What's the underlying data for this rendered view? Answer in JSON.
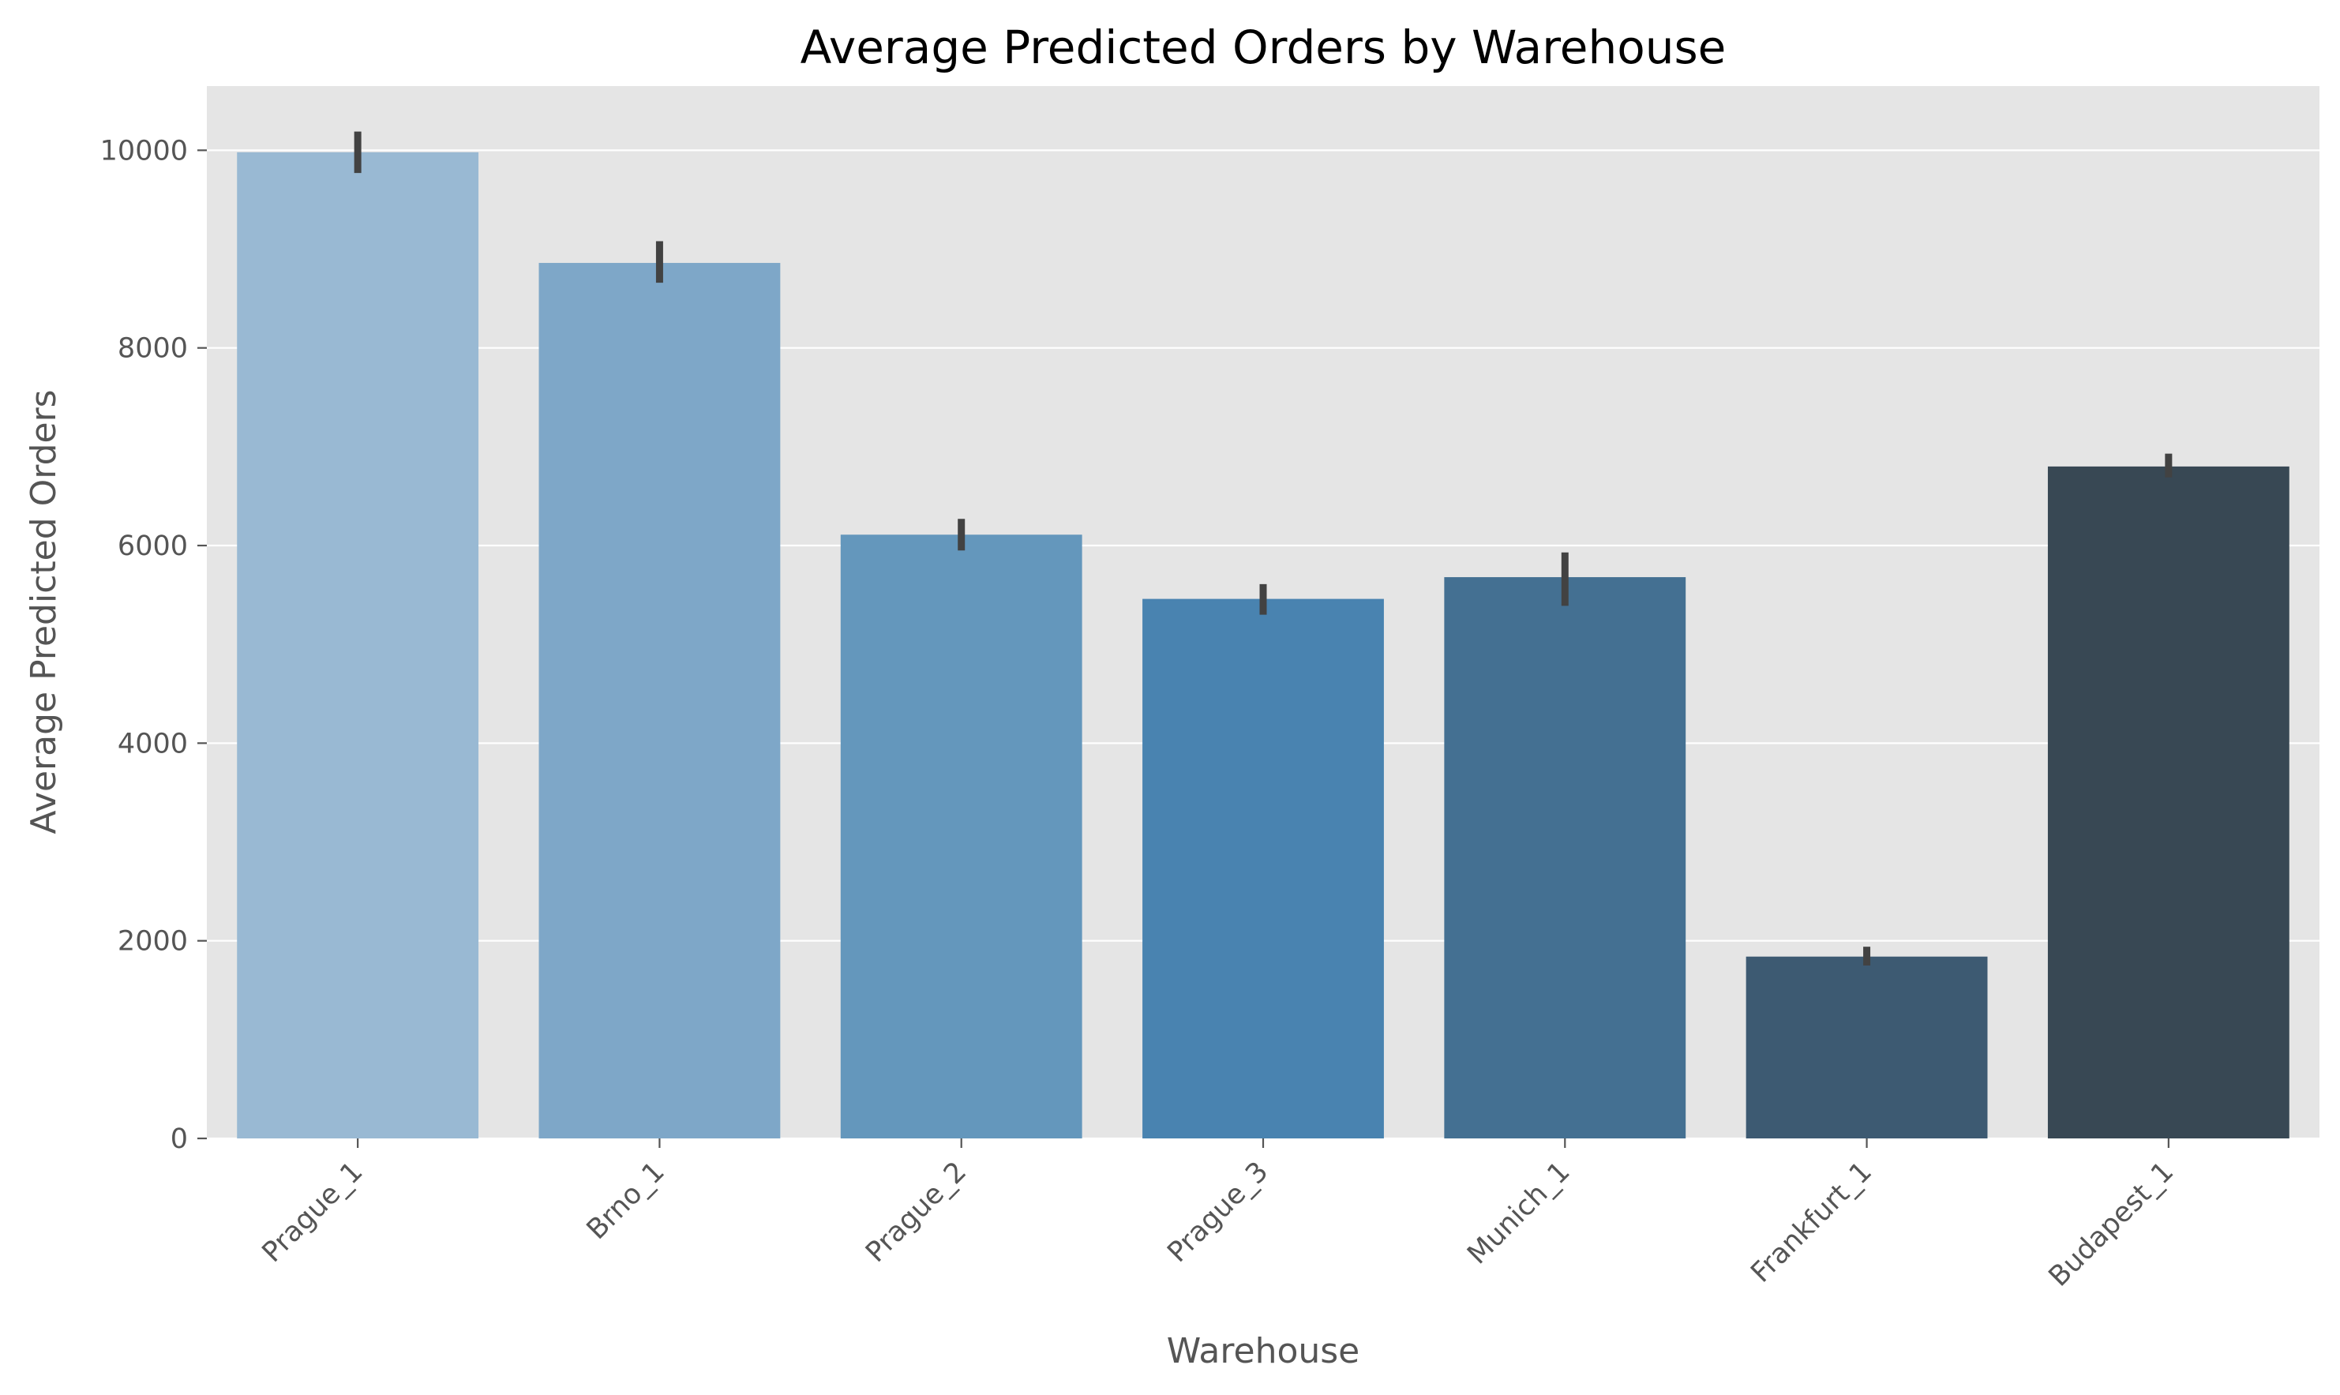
{
  "chart_data": {
    "type": "bar",
    "title": "Average Predicted Orders by Warehouse",
    "xlabel": "Warehouse",
    "ylabel": "Average Predicted Orders",
    "categories": [
      "Prague_1",
      "Brno_1",
      "Prague_2",
      "Prague_3",
      "Munich_1",
      "Frankfurt_1",
      "Budapest_1"
    ],
    "values": [
      9980,
      8860,
      6110,
      5460,
      5680,
      1840,
      6800
    ],
    "error_low": [
      9770,
      8660,
      5950,
      5300,
      5390,
      1750,
      6690
    ],
    "error_high": [
      10190,
      9080,
      6270,
      5610,
      5930,
      1940,
      6930
    ],
    "ylim": [
      0,
      10650
    ],
    "yticks": [
      0,
      2000,
      4000,
      6000,
      8000,
      10000
    ],
    "grid": true,
    "legend": "none",
    "colors": [
      "#99b9d3",
      "#7ea7c8",
      "#6497bc",
      "#4983b0",
      "#447092",
      "#3d5a72",
      "#384854"
    ],
    "background": "#e5e5e5",
    "error_color": "#424242"
  }
}
